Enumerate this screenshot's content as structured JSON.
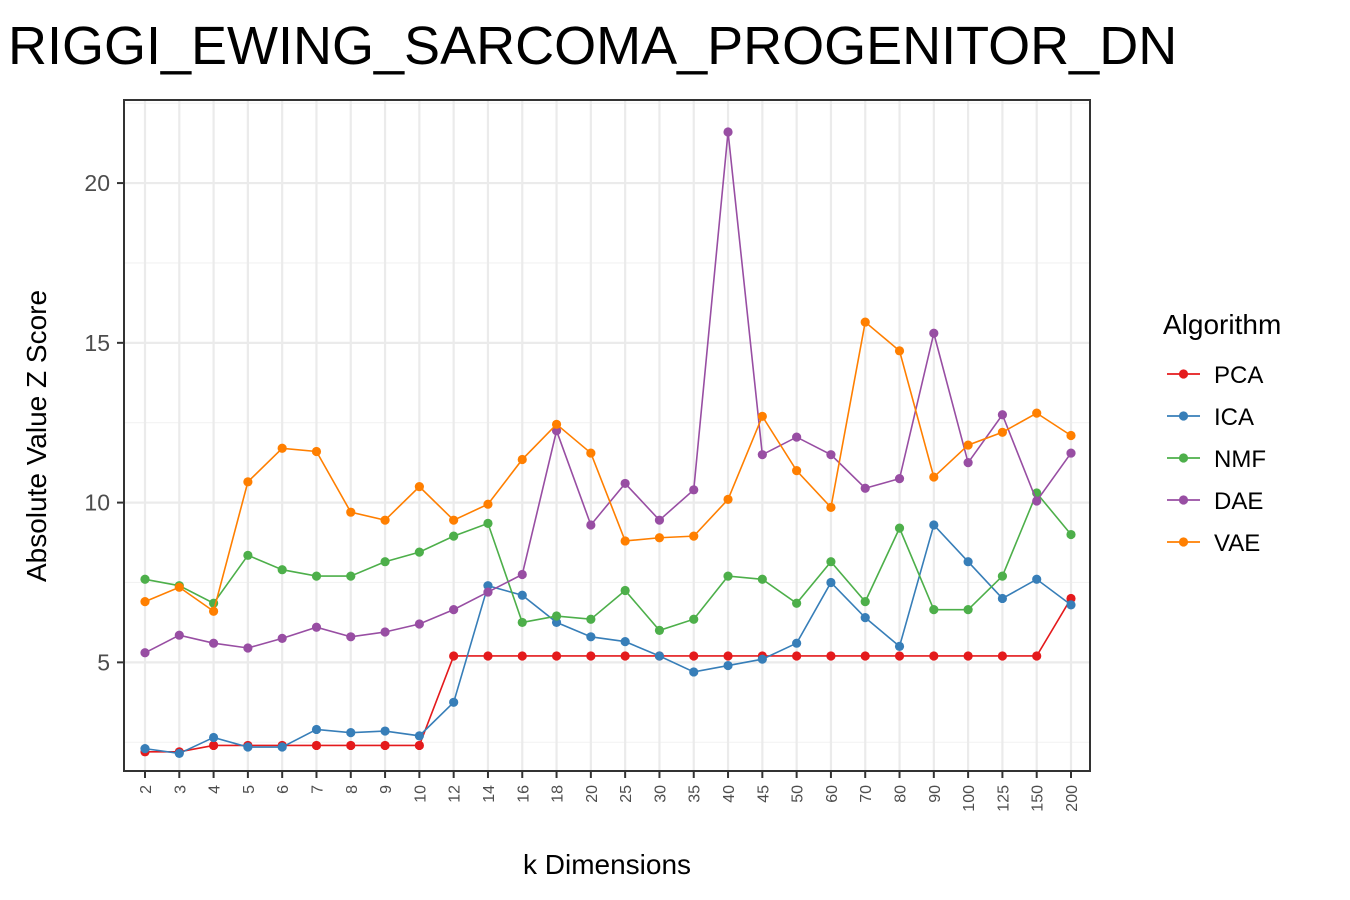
{
  "chart_data": {
    "type": "line",
    "title": "RIGGI_EWING_SARCOMA_PROGENITOR_DN",
    "xlabel": "k Dimensions",
    "ylabel": "Absolute Value Z Score",
    "categories": [
      "2",
      "3",
      "4",
      "5",
      "6",
      "7",
      "8",
      "9",
      "10",
      "12",
      "14",
      "16",
      "18",
      "20",
      "25",
      "30",
      "35",
      "40",
      "45",
      "50",
      "60",
      "70",
      "80",
      "90",
      "100",
      "125",
      "150",
      "200"
    ],
    "ylim": [
      1.6,
      22.6
    ],
    "yticks": [
      5,
      10,
      15,
      20
    ],
    "legend_title": "Algorithm",
    "legend_position": "right",
    "grid": true,
    "series": [
      {
        "name": "PCA",
        "color": "#E41A1C",
        "values": [
          2.2,
          2.2,
          2.4,
          2.4,
          2.4,
          2.4,
          2.4,
          2.4,
          2.4,
          5.2,
          5.2,
          5.2,
          5.2,
          5.2,
          5.2,
          5.2,
          5.2,
          5.2,
          5.2,
          5.2,
          5.2,
          5.2,
          5.2,
          5.2,
          5.2,
          5.2,
          5.2,
          7.0
        ]
      },
      {
        "name": "ICA",
        "color": "#377EB8",
        "values": [
          2.3,
          2.15,
          2.65,
          2.35,
          2.35,
          2.9,
          2.8,
          2.85,
          2.7,
          3.75,
          7.4,
          7.1,
          6.25,
          5.8,
          5.65,
          5.2,
          4.7,
          4.9,
          5.1,
          5.6,
          7.5,
          6.4,
          5.5,
          9.3,
          8.15,
          7.0,
          7.6,
          6.8
        ]
      },
      {
        "name": "NMF",
        "color": "#4DAF4A",
        "values": [
          7.6,
          7.4,
          6.85,
          8.35,
          7.9,
          7.7,
          7.7,
          8.15,
          8.45,
          8.95,
          9.35,
          6.25,
          6.45,
          6.35,
          7.25,
          6.0,
          6.35,
          7.7,
          7.6,
          6.85,
          8.15,
          6.9,
          9.2,
          6.65,
          6.65,
          7.7,
          10.3,
          9.0
        ]
      },
      {
        "name": "DAE",
        "color": "#984EA3",
        "values": [
          5.3,
          5.85,
          5.6,
          5.45,
          5.75,
          6.1,
          5.8,
          5.95,
          6.2,
          6.65,
          7.2,
          7.75,
          12.25,
          9.3,
          10.6,
          9.45,
          10.4,
          21.6,
          11.5,
          12.05,
          11.5,
          10.45,
          10.75,
          15.3,
          11.25,
          12.75,
          10.05,
          11.55
        ]
      },
      {
        "name": "VAE",
        "color": "#FF7F00",
        "values": [
          6.9,
          7.35,
          6.6,
          10.65,
          11.7,
          11.6,
          9.7,
          9.45,
          10.5,
          9.45,
          9.95,
          11.35,
          12.45,
          11.55,
          8.8,
          8.9,
          8.95,
          10.1,
          12.7,
          11.0,
          9.85,
          15.65,
          14.75,
          10.8,
          11.8,
          12.2,
          12.8,
          12.1
        ]
      }
    ]
  }
}
